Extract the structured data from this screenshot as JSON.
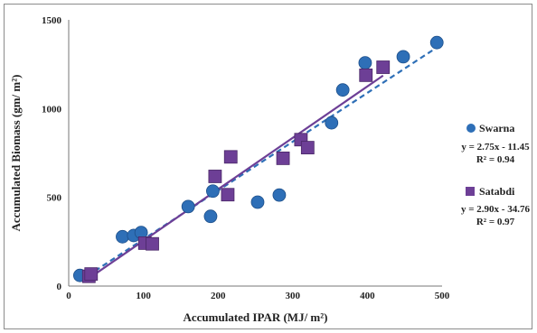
{
  "chart_data": {
    "type": "scatter",
    "xlabel": "Accumulated IPAR (MJ/ m²)",
    "ylabel": "Accumulated Biomass (gm/ m²)",
    "xlim": [
      0,
      500
    ],
    "ylim": [
      0,
      1500
    ],
    "xticks": [
      "0",
      "100",
      "200",
      "300",
      "400",
      "500"
    ],
    "yticks": [
      "0",
      "500",
      "1000",
      "1500"
    ],
    "grid": false,
    "legend_placement": "right",
    "series": [
      {
        "name": "Swarna",
        "marker": "circle",
        "color": "#2e6fb7",
        "x": [
          15,
          72,
          87,
          97,
          160,
          190,
          193,
          253,
          282,
          352,
          367,
          397,
          448,
          493
        ],
        "y": [
          60,
          278,
          285,
          302,
          448,
          393,
          535,
          473,
          513,
          920,
          1105,
          1258,
          1292,
          1372
        ],
        "trendline": {
          "slope": 2.75,
          "intercept": -11.45,
          "x_range": [
            15,
            493
          ],
          "style": "dashed",
          "color": "#2e6fb7"
        },
        "equation": "y = 2.75x - 11.45",
        "r2": "R² = 0.94"
      },
      {
        "name": "Satabdi",
        "marker": "square",
        "color": "#6d3f96",
        "x": [
          27,
          30,
          102,
          112,
          196,
          213,
          217,
          287,
          311,
          320,
          398,
          421
        ],
        "y": [
          55,
          68,
          242,
          238,
          618,
          515,
          728,
          720,
          825,
          780,
          1188,
          1233
        ],
        "trendline": {
          "slope": 2.9,
          "intercept": -34.76,
          "x_range": [
            27,
            421
          ],
          "style": "solid",
          "color": "#6d3f96"
        },
        "equation": "y = 2.90x - 34.76",
        "r2": "R² = 0.97"
      }
    ]
  }
}
